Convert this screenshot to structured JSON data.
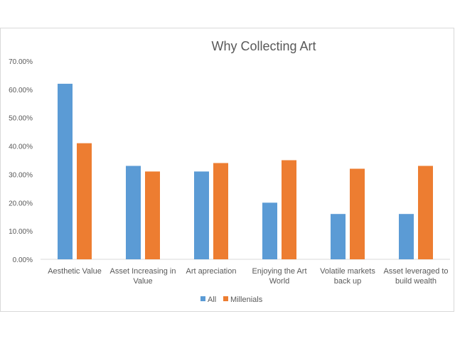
{
  "chart_data": {
    "type": "bar",
    "title": "Why Collecting Art",
    "categories": [
      [
        "Aesthetic Value"
      ],
      [
        "Asset Increasing in",
        "Value"
      ],
      [
        "Art apreciation"
      ],
      [
        "Enjoying the Art",
        "World"
      ],
      [
        "Volatile markets",
        "back up"
      ],
      [
        "Asset leveraged to",
        "build wealth"
      ]
    ],
    "series": [
      {
        "name": "All",
        "color": "#5b9bd5",
        "values": [
          0.62,
          0.33,
          0.31,
          0.2,
          0.16,
          0.16
        ]
      },
      {
        "name": "Millenials",
        "color": "#ed7d31",
        "values": [
          0.41,
          0.31,
          0.34,
          0.35,
          0.32,
          0.33
        ]
      }
    ],
    "yticks": [
      "0.00%",
      "10.00%",
      "20.00%",
      "30.00%",
      "40.00%",
      "50.00%",
      "60.00%",
      "70.00%"
    ],
    "ylim": [
      0,
      0.7
    ],
    "grid": false,
    "legend_position": "bottom"
  }
}
